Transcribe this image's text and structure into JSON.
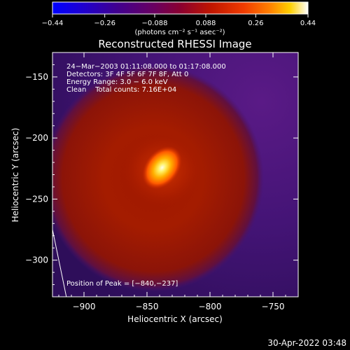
{
  "chart_data": {
    "type": "heatmap",
    "title": "Reconstructed RHESSI Image",
    "xlabel": "Heliocentric X (arcsec)",
    "ylabel": "Heliocentric Y (arcsec)",
    "xlim": [
      -925,
      -730
    ],
    "ylim": [
      -330,
      -130
    ],
    "xticks": [
      -900,
      -850,
      -800,
      -750
    ],
    "xtick_labels": [
      "−900",
      "−850",
      "−800",
      "−750"
    ],
    "yticks": [
      -150,
      -200,
      -250,
      -300
    ],
    "ytick_labels": [
      "−150",
      "−200",
      "−250",
      "−300"
    ],
    "colorbar": {
      "range": [
        -0.44,
        0.44
      ],
      "ticks": [
        -0.44,
        -0.26,
        -0.088,
        0.088,
        0.26,
        0.44
      ],
      "tick_labels": [
        "−0.44",
        "−0.26",
        "−0.088",
        "0.088",
        "0.26",
        "0.44"
      ],
      "unit_label": "(photons cm⁻² s⁻¹ asec⁻²)"
    },
    "annotations": [
      "24−Mar−2003 01:11:08.000 to 01:17:08.000",
      "Detectors: 3F 4F 5F 6F 7F 8F, Att 0",
      "Energy Range: 3.0 − 6.0 keV",
      "Clean    Total counts: 7.16E+04"
    ],
    "peak_label": "Position of Peak = [−840,−237]",
    "peak": [
      -840,
      -237
    ],
    "source_center": [
      -838,
      -222
    ],
    "ring_center": [
      -845,
      -233
    ],
    "limb_line": [
      [
        -925,
        -275
      ],
      [
        -914,
        -330
      ]
    ]
  },
  "footer": {
    "timestamp": "30-Apr-2022 03:48"
  }
}
